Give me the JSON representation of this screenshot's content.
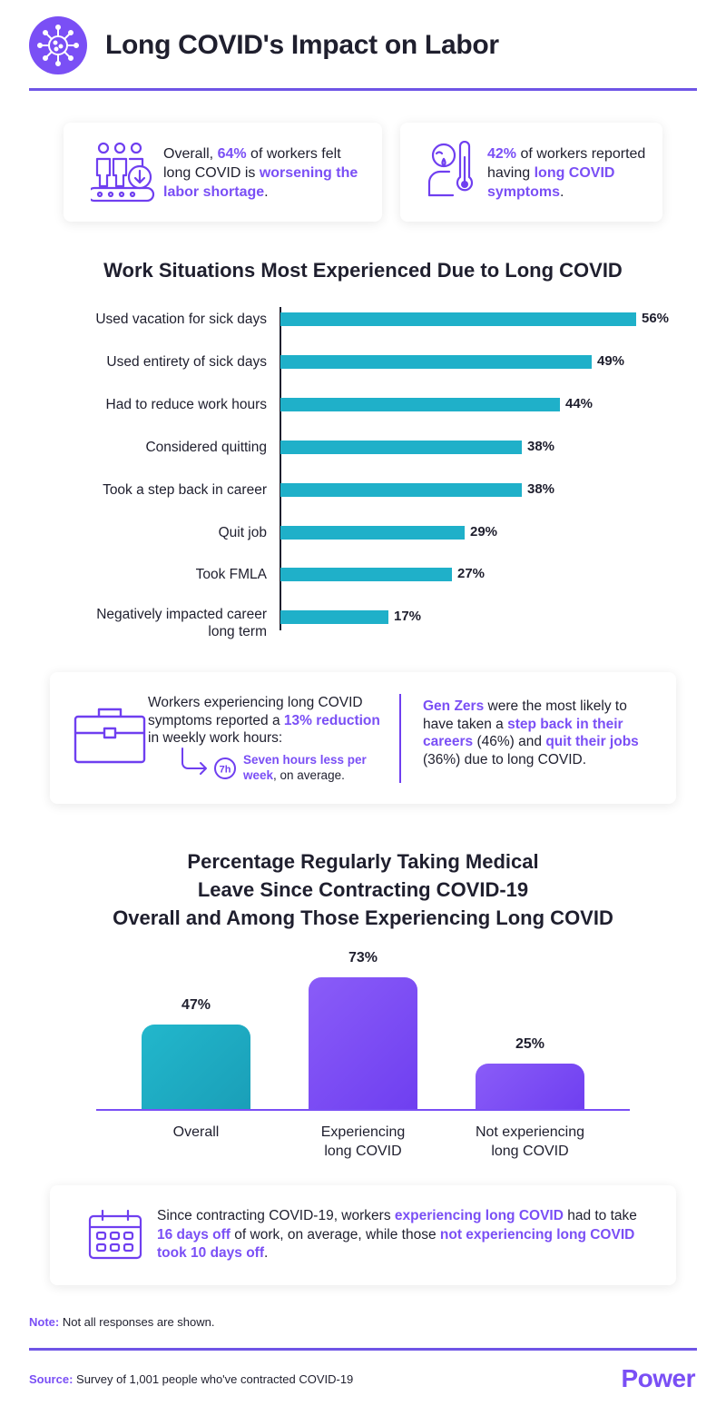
{
  "header": {
    "title": "Long COVID's Impact on Labor"
  },
  "stats": {
    "left": {
      "pre": "Overall, ",
      "highlight1": "64%",
      "mid": " of workers felt long COVID is ",
      "highlight2": "worsening the labor shortage",
      "post": "."
    },
    "right": {
      "highlight1": "42%",
      "mid": " of workers reported having ",
      "highlight2": "long COVID symptoms",
      "post": "."
    }
  },
  "chart_data": [
    {
      "type": "bar",
      "orientation": "horizontal",
      "title": "Work Situations Most Experienced Due to Long COVID",
      "categories": [
        "Used vacation for sick days",
        "Used entirety of sick days",
        "Had to reduce work hours",
        "Considered quitting",
        "Took a step back in career",
        "Quit job",
        "Took FMLA",
        "Negatively impacted career long term"
      ],
      "values": [
        56,
        49,
        44,
        38,
        38,
        29,
        27,
        17
      ],
      "value_labels": [
        "56%",
        "49%",
        "44%",
        "38%",
        "38%",
        "29%",
        "27%",
        "17%"
      ],
      "xlim": [
        0,
        56
      ],
      "grid": false,
      "color": "#1fb0c9"
    },
    {
      "type": "bar",
      "orientation": "vertical",
      "title": "Percentage Regularly Taking Medical Leave Since Contracting COVID-19 Overall and Among Those Experiencing Long COVID",
      "title_lines": [
        "Percentage Regularly Taking Medical",
        "Leave Since Contracting COVID-19",
        "Overall and Among Those Experiencing Long COVID"
      ],
      "categories": [
        "Overall",
        "Experiencing long COVID",
        "Not experiencing long COVID"
      ],
      "category_lines": [
        [
          "Overall"
        ],
        [
          "Experiencing",
          "long COVID"
        ],
        [
          "Not experiencing",
          "long COVID"
        ]
      ],
      "values": [
        47,
        73,
        25
      ],
      "value_labels": [
        "47%",
        "73%",
        "25%"
      ],
      "ylim": [
        0,
        73
      ],
      "grid": false,
      "colors": [
        "#1a9fb8",
        "#6f3ff0",
        "#6f3ff0"
      ]
    }
  ],
  "middle_box": {
    "left_pre": "Workers experiencing long COVID symptoms reported a ",
    "left_highlight": "13% reduction",
    "left_post": " in weekly work hours:",
    "clock_label": "7h",
    "sub_highlight": "Seven hours less per week",
    "sub_post": ", on average.",
    "right_highlight1": "Gen Zers",
    "right_mid1": " were the most likely to have taken a ",
    "right_highlight2": "step back in their careers",
    "right_mid2": " (46%) and ",
    "right_highlight3": "quit their jobs",
    "right_post": " (36%) due to long COVID."
  },
  "bottom_box": {
    "pre": "Since contracting COVID-19, workers ",
    "h1": "experiencing long COVID",
    "mid1": " had to take ",
    "h2": "16 days off",
    "mid2": " of work, on average, while those ",
    "h3": "not experiencing long COVID took 10 days off",
    "post": "."
  },
  "footer": {
    "note_label": "Note:",
    "note_text": " Not all responses are shown.",
    "source_label": "Source:",
    "source_text": " Survey of 1,001 people who've contracted COVID-19",
    "brand": "Power"
  },
  "colors": {
    "accent": "#7a4ff5",
    "teal": "#1fb0c9",
    "line": "#6f55e6"
  }
}
